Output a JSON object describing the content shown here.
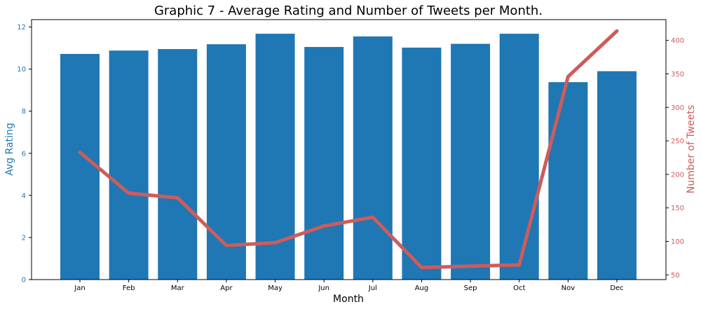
{
  "chart_data": {
    "type": "bar",
    "title": "Graphic 7 - Average Rating and Number of Tweets per Month.",
    "xlabel": "Month",
    "categories": [
      "Jan",
      "Feb",
      "Mar",
      "Apr",
      "May",
      "Jun",
      "Jul",
      "Aug",
      "Sep",
      "Oct",
      "Nov",
      "Dec"
    ],
    "series": [
      {
        "type": "bar",
        "axis": "left",
        "color": "#1f77b4",
        "values": [
          10.72,
          10.88,
          10.95,
          11.18,
          11.68,
          11.05,
          11.55,
          11.02,
          11.2,
          11.68,
          9.38,
          9.9
        ]
      },
      {
        "type": "line",
        "axis": "right",
        "color": "#cd5c5c",
        "values": [
          233,
          172,
          165,
          94,
          98,
          123,
          136,
          61,
          63,
          65,
          346,
          414
        ]
      }
    ],
    "y_left": {
      "label": "Avg Rating",
      "color": "#1f77b4",
      "ylim": [
        0,
        12.35
      ],
      "ticks": [
        0,
        2,
        4,
        6,
        8,
        10,
        12
      ],
      "tick_labels": [
        "0",
        "2",
        "4",
        "6",
        "8",
        "10",
        "12"
      ]
    },
    "y_right": {
      "label": "Number of Tweets",
      "color": "#cd5c5c",
      "ylim": [
        43,
        431
      ],
      "ticks": [
        50,
        100,
        150,
        200,
        250,
        300,
        350,
        400
      ],
      "tick_labels": [
        "50",
        "100",
        "150",
        "200",
        "250",
        "300",
        "350",
        "400"
      ]
    },
    "grid": false,
    "legend": "none"
  }
}
